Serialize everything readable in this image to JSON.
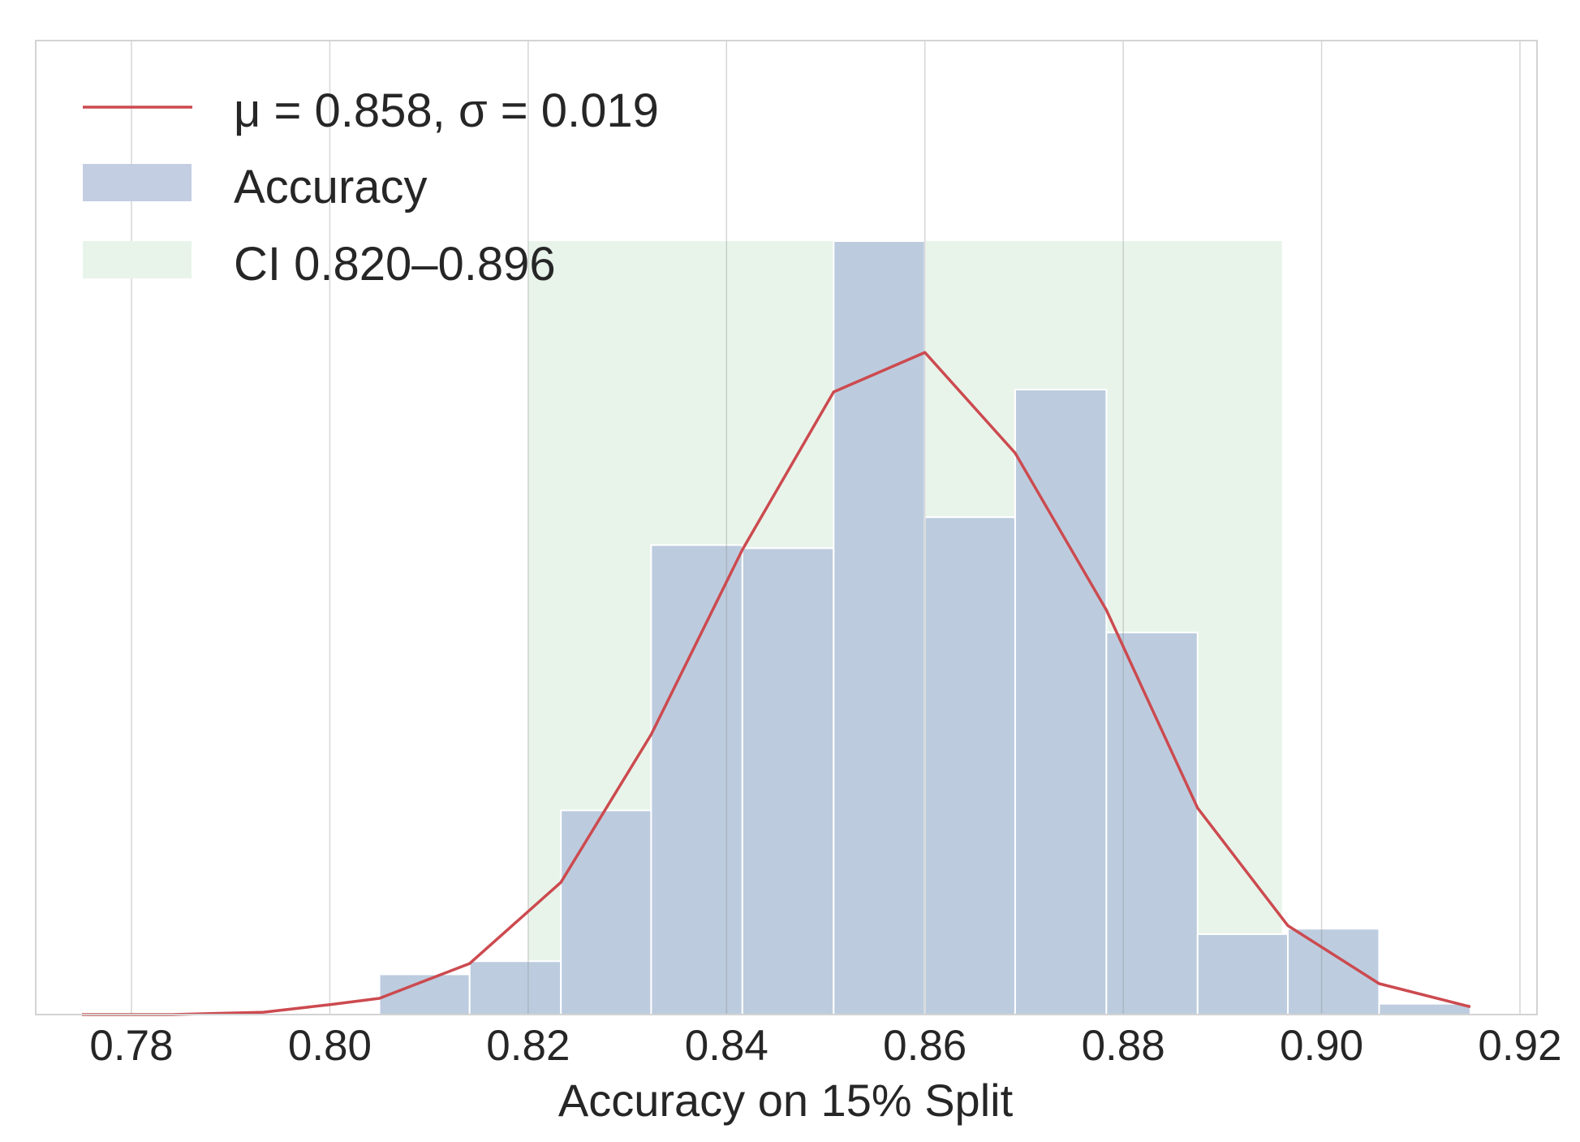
{
  "chart_data": {
    "type": "bar",
    "xlabel": "Accuracy on 15% Split",
    "ylabel": "",
    "xlim": [
      0.7725,
      0.9235
    ],
    "ylim": [
      0,
      1.0
    ],
    "x_ticks": [
      0.78,
      0.8,
      0.82,
      0.84,
      0.86,
      0.88,
      0.9,
      0.92
    ],
    "x_tick_labels": [
      "0.78",
      "0.80",
      "0.82",
      "0.84",
      "0.86",
      "0.88",
      "0.90",
      "0.92"
    ],
    "y_tick_labels_shown": false,
    "grid": "vertical",
    "legend_placement": "top-left",
    "legend": [
      {
        "kind": "line",
        "label": "μ =  0.858, σ = 0.019"
      },
      {
        "kind": "patch",
        "label": "Accuracy"
      },
      {
        "kind": "patch",
        "label": "CI 0.820–0.896"
      }
    ],
    "histogram": {
      "name": "Accuracy",
      "bin_edges": [
        0.7725,
        0.7817,
        0.7909,
        0.8001,
        0.805,
        0.8141,
        0.8233,
        0.8324,
        0.8416,
        0.8508,
        0.86,
        0.8691,
        0.8783,
        0.8875,
        0.8966,
        0.9058,
        0.915
      ],
      "values": [
        0,
        0,
        0,
        0,
        0.052,
        0.069,
        0.264,
        0.607,
        0.603,
        1.0,
        0.643,
        0.808,
        0.494,
        0.104,
        0.111,
        0.014
      ]
    },
    "fit_curve": {
      "name": "μ =  0.858, σ = 0.019",
      "x": [
        0.775,
        0.7841,
        0.7933,
        0.8001,
        0.805,
        0.8141,
        0.8233,
        0.8324,
        0.8416,
        0.8508,
        0.86,
        0.8691,
        0.8783,
        0.8875,
        0.8966,
        0.9058,
        0.915
      ],
      "y": [
        0.0,
        0.0,
        0.003,
        0.013,
        0.021,
        0.066,
        0.171,
        0.362,
        0.601,
        0.805,
        0.856,
        0.726,
        0.523,
        0.267,
        0.115,
        0.04,
        0.01
      ]
    },
    "ci_band": {
      "label": "CI 0.820–0.896",
      "x_range": [
        0.82,
        0.896
      ],
      "y_top": 1.0
    },
    "colors": {
      "hist_fill": "#b7c8dc",
      "legend_hist_fill": "#c3cee2",
      "ci_fill": "#e8f4ea",
      "fit_line": "#cc4a4f",
      "grid": "#cfcfcf",
      "axis_text": "#262626",
      "frame": "#d3d3d3"
    }
  }
}
